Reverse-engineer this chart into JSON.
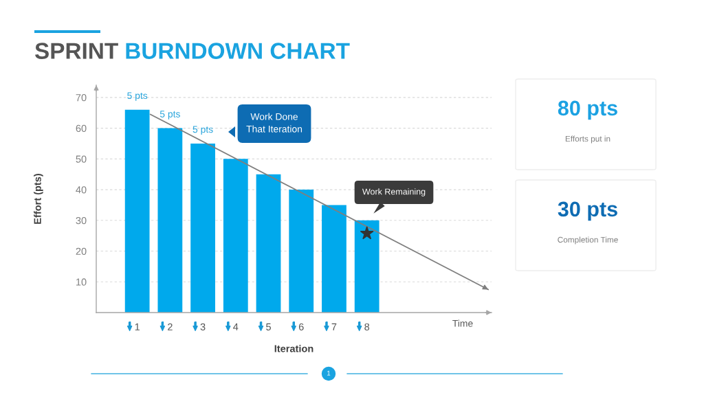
{
  "chart_data": [
    {
      "type": "bar",
      "title": "SPRINT BURNDOWN CHART",
      "xlabel": "Iteration",
      "ylabel": "Effort (pts)",
      "x": [
        1,
        2,
        3,
        4,
        5,
        6,
        7,
        8
      ],
      "series": [
        {
          "type": "bar",
          "color": "#00a9ec",
          "values": [
            66,
            60,
            55,
            50,
            45,
            40,
            35,
            30
          ]
        },
        {
          "type": "line",
          "color": "#7f7f7f",
          "x": [
            1.4,
            11.7
          ],
          "values": [
            64.5,
            7.5
          ]
        }
      ],
      "xlim": [
        -0.25,
        11.8
      ],
      "xticks": [
        1,
        2,
        3,
        4,
        5,
        6,
        7,
        8
      ],
      "ylim": [
        0,
        74
      ],
      "yticks": [
        10,
        20,
        30,
        40,
        50,
        60,
        70
      ],
      "grid": "y",
      "annotations": [
        {
          "text": "5 pts",
          "x": 1,
          "y": 66
        },
        {
          "text": "5 pts",
          "x": 2,
          "y": 60
        },
        {
          "text": "5 pts",
          "x": 3,
          "y": 55
        },
        {
          "text": "Work Remaining",
          "x": 8,
          "y": 30
        },
        "Work Done\nThat Iteration",
        "Time",
        "1"
      ]
    },
    {
      "type": "other",
      "annotations": [
        "80 pts",
        "Efforts put in",
        "30 pts",
        "Completion Time"
      ],
      "colors": [
        "#1ba1e2",
        "#0e6cb3"
      ]
    }
  ]
}
